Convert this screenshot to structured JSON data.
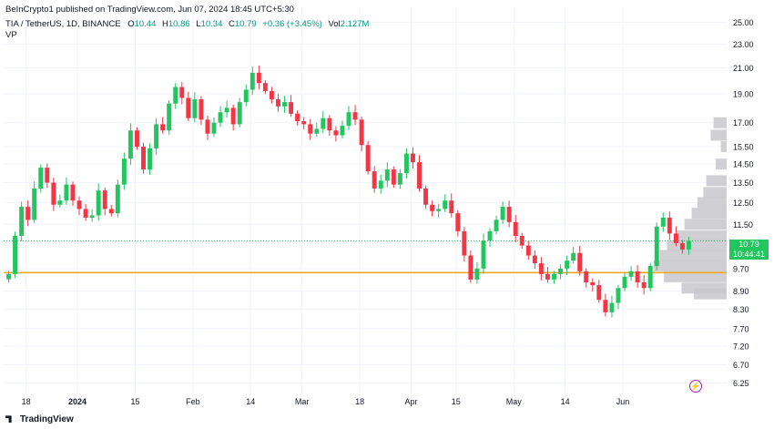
{
  "publisher": "BeInCrypto1 published on TradingView.com, Jun 07, 2024 18:45 UTC+5:30",
  "legend": {
    "symbol": "TIA / TetherUS, 1D, BINANCE",
    "o_label": "O",
    "o_value": "10.44",
    "h_label": "H",
    "h_value": "10.86",
    "l_label": "L",
    "l_value": "10.34",
    "c_label": "C",
    "c_value": "10.79",
    "change": "+0.36 (+3.45%)",
    "vol_label": "Vol",
    "vol_value": "2.127M",
    "indicator": "VP"
  },
  "last_price": {
    "value": "10.79",
    "countdown": "10:44:41"
  },
  "footer_logo": "TradingView",
  "colors": {
    "up": "#089981",
    "up_candle": "#22c55e",
    "down": "#f23645",
    "support": "#f5a623",
    "profile": "#c8c8cc",
    "grid": "#f0f3fa"
  },
  "chart_data": {
    "type": "candlestick",
    "title": "TIA / TetherUS, 1D, BINANCE",
    "y_scale": "log",
    "ylim": [
      6.0,
      26.5
    ],
    "y_ticks": [
      "25.00",
      "23.00",
      "21.00",
      "19.00",
      "17.00",
      "15.50",
      "14.50",
      "13.50",
      "12.50",
      "11.50",
      "10.79",
      "9.70",
      "8.90",
      "8.30",
      "7.70",
      "7.20",
      "6.70",
      "6.25"
    ],
    "x_ticks": [
      "18",
      "2024",
      "15",
      "Feb",
      "14",
      "Mar",
      "18",
      "Apr",
      "15",
      "May",
      "14",
      "Jun"
    ],
    "support_level": 9.55,
    "last_price_line": 10.79,
    "close_path": [
      9.5,
      11,
      12.3,
      11.7,
      13.2,
      14.3,
      13.5,
      12.4,
      12.6,
      13.4,
      12.6,
      12.2,
      11.8,
      11.9,
      13.1,
      12.2,
      12,
      13.4,
      14.8,
      16.5,
      15.5,
      14.2,
      15.4,
      16.9,
      16.5,
      18.3,
      19.5,
      18.7,
      17.3,
      18.6,
      17.2,
      16.3,
      17,
      17.7,
      18,
      16.9,
      18.4,
      19.3,
      20.6,
      19.8,
      19.2,
      18.6,
      18.1,
      18.4,
      17.6,
      17.1,
      16.9,
      16.3,
      16.6,
      17.3,
      16.5,
      16.2,
      16.8,
      17.7,
      17.2,
      15.6,
      14.1,
      13.2,
      13.6,
      14.2,
      13.4,
      14,
      15.1,
      14.6,
      13.2,
      12.4,
      12.1,
      12.2,
      12.6,
      12,
      11.2,
      10.2,
      9.3,
      9.7,
      10.8,
      11.2,
      11.7,
      12.3,
      11.6,
      11,
      10.6,
      10.2,
      9.9,
      9.5,
      9.3,
      9.5,
      9.7,
      10,
      10.3,
      9.6,
      9.2,
      9.1,
      8.6,
      8.2,
      8.5,
      9,
      9.4,
      9.6,
      9.2,
      9,
      9.8,
      11.4,
      11.8,
      11.1,
      10.7,
      10.44,
      10.79
    ],
    "volume_profile": [
      {
        "price": 17.0,
        "volume": 0.18
      },
      {
        "price": 16.2,
        "volume": 0.22
      },
      {
        "price": 15.5,
        "volume": 0.08
      },
      {
        "price": 14.5,
        "volume": 0.15
      },
      {
        "price": 13.6,
        "volume": 0.28
      },
      {
        "price": 13.0,
        "volume": 0.32
      },
      {
        "price": 12.5,
        "volume": 0.4
      },
      {
        "price": 12.0,
        "volume": 0.48
      },
      {
        "price": 11.5,
        "volume": 0.58
      },
      {
        "price": 11.0,
        "volume": 0.7
      },
      {
        "price": 10.6,
        "volume": 0.82
      },
      {
        "price": 10.2,
        "volume": 0.92
      },
      {
        "price": 9.8,
        "volume": 1.0
      },
      {
        "price": 9.4,
        "volume": 0.86
      },
      {
        "price": 9.0,
        "volume": 0.62
      },
      {
        "price": 8.8,
        "volume": 0.45
      }
    ]
  }
}
